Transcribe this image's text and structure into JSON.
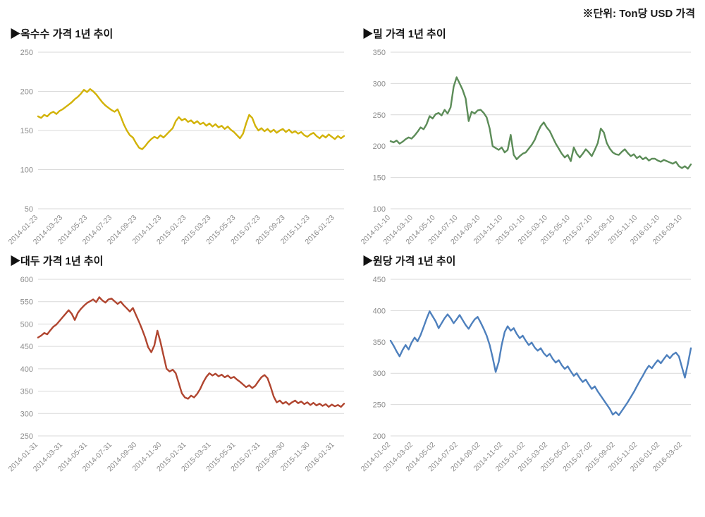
{
  "header": {
    "unit_label": "※단위: Ton당 USD 가격"
  },
  "chart_data": [
    {
      "type": "line",
      "title": "▶옥수수 가격 1년 추이",
      "series_name": "옥수수 가격",
      "color": "#d2b207",
      "grid_color": "#d9d9d9",
      "ylim": [
        50,
        250
      ],
      "y_ticks": [
        250,
        200,
        150,
        100,
        50
      ],
      "grid": "horizontal",
      "legend": "none",
      "x_labels": [
        "2014-01-23",
        "2014-03-23",
        "2014-05-23",
        "2014-07-23",
        "2014-09-23",
        "2014-11-23",
        "2015-01-23",
        "2015-03-23",
        "2015-05-23",
        "2015-07-23",
        "2015-09-23",
        "2015-11-23",
        "2016-01-23"
      ],
      "values": [
        168,
        166,
        170,
        168,
        172,
        174,
        171,
        175,
        177,
        180,
        183,
        186,
        190,
        193,
        197,
        202,
        199,
        203,
        200,
        196,
        191,
        186,
        182,
        179,
        176,
        174,
        177,
        168,
        158,
        150,
        144,
        141,
        134,
        128,
        126,
        130,
        135,
        139,
        142,
        140,
        144,
        141,
        145,
        149,
        153,
        162,
        167,
        163,
        165,
        161,
        163,
        159,
        162,
        158,
        160,
        156,
        159,
        155,
        158,
        154,
        156,
        152,
        155,
        151,
        148,
        144,
        140,
        146,
        159,
        170,
        166,
        156,
        150,
        153,
        149,
        152,
        148,
        151,
        147,
        150,
        152,
        148,
        151,
        147,
        149,
        146,
        148,
        144,
        142,
        145,
        147,
        143,
        140,
        144,
        141,
        145,
        142,
        139,
        143,
        140,
        143
      ]
    },
    {
      "type": "line",
      "title": "▶밀 가격 1년 추이",
      "series_name": "밀 가격",
      "color": "#5c8c58",
      "grid_color": "#d9d9d9",
      "ylim": [
        100,
        350
      ],
      "y_ticks": [
        350,
        300,
        250,
        200,
        150,
        100
      ],
      "grid": "horizontal",
      "legend": "none",
      "x_labels": [
        "2014-01-10",
        "2014-03-10",
        "2014-05-10",
        "2014-07-10",
        "2014-09-10",
        "2014-11-10",
        "2015-01-10",
        "2015-03-10",
        "2015-05-10",
        "2015-07-10",
        "2015-09-10",
        "2015-11-10",
        "2016-01-10",
        "2016-03-10"
      ],
      "values": [
        208,
        206,
        209,
        204,
        207,
        211,
        214,
        212,
        217,
        223,
        230,
        227,
        235,
        248,
        244,
        251,
        253,
        249,
        258,
        252,
        262,
        295,
        310,
        300,
        290,
        276,
        240,
        255,
        252,
        257,
        258,
        253,
        246,
        228,
        200,
        197,
        194,
        198,
        190,
        194,
        218,
        186,
        179,
        184,
        188,
        190,
        196,
        202,
        210,
        222,
        232,
        238,
        230,
        224,
        214,
        204,
        196,
        188,
        182,
        186,
        176,
        198,
        188,
        182,
        188,
        195,
        190,
        184,
        194,
        205,
        228,
        222,
        205,
        196,
        190,
        187,
        186,
        191,
        195,
        189,
        184,
        187,
        181,
        184,
        179,
        182,
        177,
        180,
        180,
        177,
        175,
        178,
        176,
        174,
        172,
        175,
        168,
        165,
        168,
        164,
        171
      ]
    },
    {
      "type": "line",
      "title": "▶대두 가격 1년 추이",
      "series_name": "대두 가격",
      "color": "#b0452f",
      "grid_color": "#d9d9d9",
      "ylim": [
        250,
        600
      ],
      "y_ticks": [
        600,
        550,
        500,
        450,
        400,
        350,
        300,
        250
      ],
      "grid": "horizontal",
      "legend": "none",
      "x_labels": [
        "2014-01-31",
        "2014-03-31",
        "2014-05-31",
        "2014-07-31",
        "2014-09-30",
        "2014-11-30",
        "2015-01-31",
        "2015-03-31",
        "2015-05-31",
        "2015-07-31",
        "2015-09-30",
        "2015-11-30",
        "2016-01-31"
      ],
      "values": [
        470,
        474,
        480,
        477,
        486,
        494,
        499,
        507,
        515,
        523,
        531,
        523,
        509,
        525,
        534,
        541,
        547,
        551,
        555,
        549,
        560,
        553,
        548,
        555,
        557,
        551,
        545,
        550,
        542,
        535,
        528,
        536,
        520,
        505,
        488,
        470,
        448,
        437,
        452,
        485,
        460,
        430,
        400,
        394,
        398,
        390,
        368,
        345,
        336,
        333,
        340,
        336,
        344,
        355,
        370,
        382,
        390,
        385,
        389,
        383,
        387,
        381,
        385,
        379,
        382,
        376,
        371,
        365,
        359,
        363,
        357,
        362,
        372,
        381,
        386,
        379,
        360,
        338,
        325,
        329,
        322,
        326,
        320,
        325,
        329,
        323,
        327,
        321,
        325,
        319,
        324,
        318,
        322,
        317,
        321,
        315,
        320,
        316,
        319,
        315,
        322
      ]
    },
    {
      "type": "line",
      "title": "▶원당 가격 1년 추이",
      "series_name": "원당 가격",
      "color": "#4e80bd",
      "grid_color": "#d9d9d9",
      "ylim": [
        200,
        450
      ],
      "y_ticks": [
        450,
        400,
        350,
        300,
        250,
        200
      ],
      "grid": "horizontal",
      "legend": "none",
      "x_labels": [
        "2014-01-02",
        "2014-03-02",
        "2014-05-02",
        "2014-07-02",
        "2014-09-02",
        "2014-11-02",
        "2015-01-02",
        "2015-03-02",
        "2015-05-02",
        "2015-07-02",
        "2015-09-02",
        "2015-11-02",
        "2016-01-02",
        "2016-03-02"
      ],
      "values": [
        352,
        344,
        335,
        327,
        337,
        345,
        338,
        349,
        357,
        351,
        361,
        374,
        387,
        399,
        391,
        383,
        372,
        380,
        388,
        394,
        388,
        380,
        386,
        393,
        385,
        377,
        371,
        379,
        386,
        390,
        381,
        371,
        360,
        345,
        325,
        302,
        318,
        345,
        366,
        375,
        368,
        372,
        363,
        356,
        360,
        352,
        345,
        349,
        341,
        336,
        340,
        332,
        327,
        331,
        323,
        317,
        321,
        313,
        307,
        311,
        303,
        296,
        300,
        292,
        286,
        290,
        282,
        275,
        279,
        271,
        264,
        257,
        250,
        243,
        234,
        238,
        233,
        240,
        247,
        254,
        262,
        270,
        279,
        288,
        296,
        305,
        312,
        308,
        315,
        321,
        316,
        323,
        329,
        324,
        330,
        333,
        327,
        310,
        293,
        315,
        340
      ]
    }
  ]
}
